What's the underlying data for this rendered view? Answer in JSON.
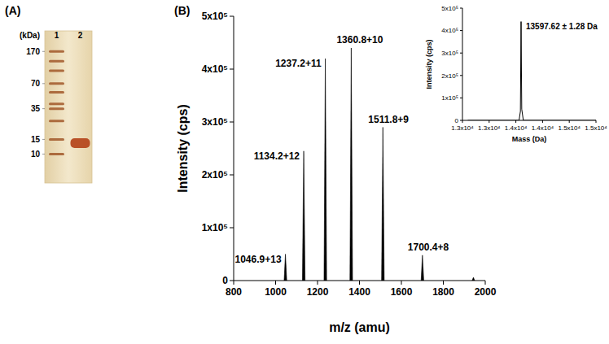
{
  "chart_data": [
    {
      "type": "gel",
      "title": "(A)",
      "ylabel": "(kDa)",
      "log": "y",
      "ylim": [
        4.5,
        300
      ],
      "yticks": [
        170,
        70,
        35,
        15,
        10
      ],
      "series": [
        {
          "name": "1",
          "color": "#9c4f1f",
          "values": [
            170,
            130,
            100,
            70,
            55,
            40,
            35,
            25,
            15,
            10
          ]
        },
        {
          "name": "2",
          "color": "#b4441a",
          "values": [
            13.5
          ]
        }
      ]
    },
    {
      "type": "stem",
      "title": "(B)",
      "xlabel": "m/z (amu)",
      "ylabel": "Intensity (cps)",
      "xlim": [
        800,
        2000
      ],
      "xticks": [
        800,
        1000,
        1200,
        1400,
        1600,
        1800,
        2000
      ],
      "ylim": [
        0,
        500000
      ],
      "yticks": [
        0,
        {
          "value": 100000,
          "label": "1x10⁵"
        },
        {
          "value": 200000,
          "label": "2x10⁵"
        },
        {
          "value": 300000,
          "label": "3x10⁵"
        },
        {
          "value": 400000,
          "label": "4x10⁵"
        },
        {
          "value": 500000,
          "label": "5x10⁵"
        }
      ],
      "x": [
        1046.9,
        1134.2,
        1237.2,
        1360.8,
        1511.8,
        1700.4,
        1943.5
      ],
      "values": [
        50000,
        245000,
        420000,
        440000,
        290000,
        48000,
        6000
      ],
      "annotations": [
        "1046.9+13",
        "1134.2+12",
        "1237.2+11",
        "1360.8+10",
        "1511.8+9",
        "1700.4+8",
        null
      ],
      "color": "#000000"
    },
    {
      "type": "line",
      "xlabel": "Mass (Da)",
      "ylabel": "Intensity (cps)",
      "xlim": [
        12500,
        15000
      ],
      "xticks": [
        {
          "value": 12500,
          "label": "1.3x10⁴"
        },
        {
          "value": 13000,
          "label": "1.3x10⁴"
        },
        {
          "value": 13500,
          "label": "1.4x10⁴"
        },
        {
          "value": 14000,
          "label": "1.4x10⁴"
        },
        {
          "value": 14500,
          "label": "1.5x10⁴"
        },
        {
          "value": 15000,
          "label": "1.5x10⁴"
        }
      ],
      "ylim": [
        0,
        500000
      ],
      "yticks": [
        0,
        {
          "value": 100000,
          "label": "1x10⁵"
        },
        {
          "value": 200000,
          "label": "2x10⁵"
        },
        {
          "value": 300000,
          "label": "3x10⁵"
        },
        {
          "value": 400000,
          "label": "4x10⁵"
        },
        {
          "value": 500000,
          "label": "5x10⁵"
        }
      ],
      "x": [
        12600,
        13560,
        13585,
        13597.62,
        13610,
        13640,
        15000
      ],
      "values": [
        0,
        0,
        40000,
        440000,
        50000,
        0,
        0
      ],
      "annotation": "13597.62 ± 1.28 Da",
      "color": "#000000"
    }
  ]
}
